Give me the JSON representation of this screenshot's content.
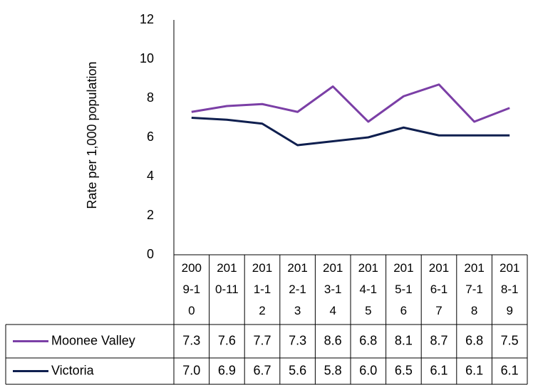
{
  "chart_data": {
    "type": "line",
    "y_label": "Rate per 1,000 population",
    "categories": [
      "2009-10",
      "2010-11",
      "2011-12",
      "2012-13",
      "2013-14",
      "2014-15",
      "2015-16",
      "2016-17",
      "2017-18",
      "2018-19"
    ],
    "series": [
      {
        "name": "Moonee Valley",
        "color": "#7b3fa6",
        "values": [
          7.3,
          7.6,
          7.7,
          7.3,
          8.6,
          6.8,
          8.1,
          8.7,
          6.8,
          7.5
        ],
        "value_labels": [
          "7.3",
          "7.6",
          "7.7",
          "7.3",
          "8.6",
          "6.8",
          "8.1",
          "8.7",
          "6.8",
          "7.5"
        ]
      },
      {
        "name": "Victoria",
        "color": "#0f1f4f",
        "values": [
          7.0,
          6.9,
          6.7,
          5.6,
          5.8,
          6.0,
          6.5,
          6.1,
          6.1,
          6.1
        ],
        "value_labels": [
          "7.0",
          "6.9",
          "6.7",
          "5.6",
          "5.8",
          "6.0",
          "6.5",
          "6.1",
          "6.1",
          "6.1"
        ]
      }
    ],
    "ylim": [
      0,
      12
    ],
    "yticks": [
      0,
      2,
      4,
      6,
      8,
      10,
      12
    ],
    "grid": false
  }
}
